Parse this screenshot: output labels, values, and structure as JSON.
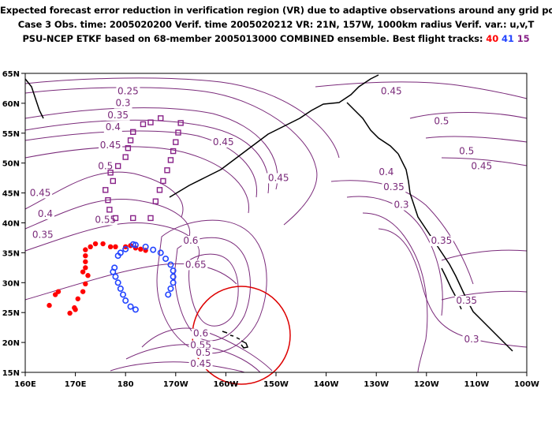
{
  "header": {
    "line1": "Expected forecast error reduction in verification region (VR) due to adaptive observations around any grid point.",
    "line2": "Case 3   Obs. time: 2005020200   Verif. time 2005020212   VR: 21N, 157W, 1000km radius   Verif. var.: u,v,T",
    "line3_prefix": "PSU-NCEP ETKF based on 68-member 2005013000 COMBINED ensemble.   Best flight tracks: ",
    "track_labels": [
      "40",
      "41",
      "15"
    ]
  },
  "colors": {
    "contour": "#7a2a7a",
    "track_40": "#ff0000",
    "track_41": "#2244ff",
    "track_15": "#882288",
    "verification_circle": "#dd0000",
    "coast": "#000000"
  },
  "map": {
    "lon_labels": [
      "160E",
      "170E",
      "180",
      "170W",
      "160W",
      "150W",
      "140W",
      "130W",
      "120W",
      "110W",
      "100W"
    ],
    "lat_labels": [
      "65N",
      "60N",
      "55N",
      "50N",
      "45N",
      "40N",
      "35N",
      "30N",
      "25N",
      "20N",
      "15N"
    ],
    "lon_range": [
      160,
      260
    ],
    "lat_range": [
      15,
      65
    ],
    "verification_region": {
      "lat": 21,
      "lon": 203,
      "radius_km": 1000
    }
  },
  "contour_labels": [
    {
      "text": "0.25",
      "lon": 180.5,
      "lat": 61.5
    },
    {
      "text": "0.3",
      "lon": 179.5,
      "lat": 59.5
    },
    {
      "text": "0.35",
      "lon": 178.5,
      "lat": 57.5
    },
    {
      "text": "0.4",
      "lon": 177.5,
      "lat": 55.5
    },
    {
      "text": "0.45",
      "lon": 177,
      "lat": 52.5
    },
    {
      "text": "0.5",
      "lon": 176,
      "lat": 49
    },
    {
      "text": "0.45",
      "lon": 163,
      "lat": 44.5
    },
    {
      "text": "0.4",
      "lon": 164,
      "lat": 41
    },
    {
      "text": "0.35",
      "lon": 163.5,
      "lat": 37.5
    },
    {
      "text": "0.45",
      "lon": 199.5,
      "lat": 53
    },
    {
      "text": "0.45",
      "lon": 210.5,
      "lat": 47
    },
    {
      "text": "0.55",
      "lon": 176,
      "lat": 40
    },
    {
      "text": "0.6",
      "lon": 193,
      "lat": 36.5
    },
    {
      "text": "0.65",
      "lon": 194,
      "lat": 32.5
    },
    {
      "text": "0.6",
      "lon": 195,
      "lat": 21
    },
    {
      "text": "0.55",
      "lon": 195,
      "lat": 19
    },
    {
      "text": "0.5",
      "lon": 195.5,
      "lat": 17.8
    },
    {
      "text": "0.45",
      "lon": 195,
      "lat": 15.9
    },
    {
      "text": "0.45",
      "lon": 233,
      "lat": 61.5
    },
    {
      "text": "0.5",
      "lon": 243,
      "lat": 56.5
    },
    {
      "text": "0.5",
      "lon": 248,
      "lat": 51.5
    },
    {
      "text": "0.45",
      "lon": 251,
      "lat": 49
    },
    {
      "text": "0.4",
      "lon": 232,
      "lat": 48
    },
    {
      "text": "0.35",
      "lon": 233.5,
      "lat": 45.5
    },
    {
      "text": "0.3",
      "lon": 235,
      "lat": 42.5
    },
    {
      "text": "0.35",
      "lon": 243,
      "lat": 36.5
    },
    {
      "text": "0.35",
      "lon": 248,
      "lat": 26.5
    },
    {
      "text": "0.3",
      "lon": 249,
      "lat": 20
    }
  ],
  "tracks": [
    {
      "name": "40",
      "points": [
        [
          171.5,
          31.8
        ],
        [
          172,
          32.5
        ],
        [
          172,
          33.5
        ],
        [
          172,
          34.5
        ],
        [
          172,
          35.5
        ],
        [
          173,
          36
        ],
        [
          174,
          36.5
        ],
        [
          175.5,
          36.5
        ],
        [
          177,
          36
        ],
        [
          178,
          36
        ],
        [
          180,
          36
        ],
        [
          181,
          36.2
        ],
        [
          182,
          35.8
        ],
        [
          183,
          35.6
        ],
        [
          184,
          35.4
        ],
        [
          172,
          29.8
        ],
        [
          171.5,
          28.5
        ],
        [
          170.5,
          27.3
        ],
        [
          169.8,
          25.8
        ],
        [
          168.9,
          24.9
        ],
        [
          166.6,
          28.5
        ],
        [
          170,
          25.5
        ],
        [
          166,
          28
        ],
        [
          164.8,
          26.2
        ],
        [
          172.5,
          31.2
        ]
      ]
    },
    {
      "name": "41",
      "points": [
        [
          182,
          36.3
        ],
        [
          184,
          36
        ],
        [
          185.5,
          35.5
        ],
        [
          187,
          35
        ],
        [
          188,
          34
        ],
        [
          189,
          33
        ],
        [
          189.5,
          32
        ],
        [
          189.5,
          31
        ],
        [
          189.5,
          30
        ],
        [
          189,
          29
        ],
        [
          188.5,
          28
        ],
        [
          181.5,
          36.4
        ],
        [
          180,
          35.6
        ],
        [
          179,
          35
        ],
        [
          178.5,
          34.5
        ],
        [
          177.8,
          32.5
        ],
        [
          177.5,
          31.8
        ],
        [
          178,
          31
        ],
        [
          178.5,
          30
        ],
        [
          179,
          29
        ],
        [
          179.5,
          28
        ],
        [
          180,
          27
        ],
        [
          181,
          26
        ],
        [
          182,
          25.5
        ]
      ]
    },
    {
      "name": "15",
      "points": [
        [
          183.5,
          56.5
        ],
        [
          187,
          57.5
        ],
        [
          185,
          56.8
        ],
        [
          181.5,
          55.2
        ],
        [
          181,
          53.8
        ],
        [
          180.5,
          52.5
        ],
        [
          180,
          51
        ],
        [
          178.5,
          49.5
        ],
        [
          177,
          48.4
        ],
        [
          177.5,
          47
        ],
        [
          176,
          45.5
        ],
        [
          176.5,
          43.8
        ],
        [
          176.8,
          42.2
        ],
        [
          178,
          40.8
        ],
        [
          181.5,
          40.8
        ],
        [
          185,
          40.8
        ],
        [
          186,
          43.6
        ],
        [
          186.8,
          45.5
        ],
        [
          187.5,
          47
        ],
        [
          188.3,
          48.8
        ],
        [
          189,
          50.5
        ],
        [
          189.5,
          52
        ],
        [
          190,
          53.5
        ],
        [
          190.5,
          55.1
        ],
        [
          191,
          56.7
        ]
      ]
    }
  ]
}
